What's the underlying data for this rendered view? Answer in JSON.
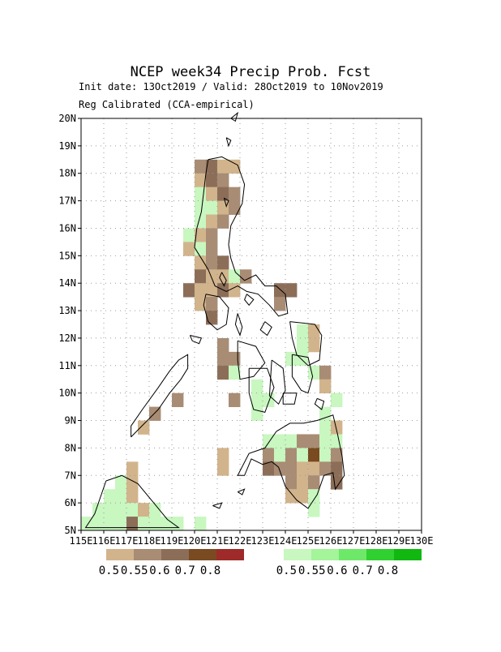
{
  "header": {
    "title": "NCEP week34 Precip Prob. Fcst",
    "init_line": "Init date: 13Oct2019 / Valid: 28Oct2019 to 10Nov2019",
    "method_line": "Reg Calibrated (CCA-empirical)"
  },
  "axes": {
    "lon_range": [
      115,
      130
    ],
    "lat_range": [
      5,
      20
    ],
    "lat_ticks": [
      "5N",
      "6N",
      "7N",
      "8N",
      "9N",
      "10N",
      "11N",
      "12N",
      "13N",
      "14N",
      "15N",
      "16N",
      "17N",
      "18N",
      "19N",
      "20N"
    ],
    "lon_ticks": [
      "115E",
      "116E",
      "117E",
      "118E",
      "119E",
      "120E",
      "121E",
      "122E",
      "123E",
      "124E",
      "125E",
      "126E",
      "127E",
      "128E",
      "129E",
      "130E"
    ]
  },
  "legend": {
    "below": {
      "labels": [
        "0.5",
        "0.55",
        "0.6",
        "0.7",
        "0.8"
      ],
      "colors": [
        "#d2b48c",
        "#a88c74",
        "#8c6e58",
        "#7a4a20",
        "#9e2a2a"
      ]
    },
    "above": {
      "labels": [
        "0.5",
        "0.55",
        "0.6",
        "0.7",
        "0.8"
      ],
      "colors": [
        "#c8f7c0",
        "#a4f49a",
        "#6ee868",
        "#30d030",
        "#10b810"
      ]
    }
  },
  "colors": {
    "frame": "#000000",
    "grid": "#9a9a9a",
    "coast": "#000000"
  },
  "cells": [
    {
      "lon": 120.25,
      "lat": 18.25,
      "c": 1
    },
    {
      "lon": 120.75,
      "lat": 18.25,
      "c": 2
    },
    {
      "lon": 121.25,
      "lat": 18.25,
      "c": 0
    },
    {
      "lon": 121.75,
      "lat": 18.25,
      "c": 0
    },
    {
      "lon": 120.25,
      "lat": 17.75,
      "c": 0
    },
    {
      "lon": 120.75,
      "lat": 17.75,
      "c": 2
    },
    {
      "lon": 121.25,
      "lat": 17.75,
      "c": 1
    },
    {
      "lon": 120.25,
      "lat": 17.25,
      "c": 5
    },
    {
      "lon": 120.75,
      "lat": 17.25,
      "c": 0
    },
    {
      "lon": 121.25,
      "lat": 17.25,
      "c": 2
    },
    {
      "lon": 121.75,
      "lat": 17.25,
      "c": 1
    },
    {
      "lon": 120.25,
      "lat": 16.75,
      "c": 5
    },
    {
      "lon": 120.75,
      "lat": 16.75,
      "c": 5
    },
    {
      "lon": 121.25,
      "lat": 16.75,
      "c": 0
    },
    {
      "lon": 121.75,
      "lat": 16.75,
      "c": 1
    },
    {
      "lon": 120.25,
      "lat": 16.25,
      "c": 5
    },
    {
      "lon": 120.75,
      "lat": 16.25,
      "c": 0
    },
    {
      "lon": 121.25,
      "lat": 16.25,
      "c": 1
    },
    {
      "lon": 119.75,
      "lat": 15.75,
      "c": 5
    },
    {
      "lon": 120.25,
      "lat": 15.75,
      "c": 0
    },
    {
      "lon": 120.75,
      "lat": 15.75,
      "c": 1
    },
    {
      "lon": 119.75,
      "lat": 15.25,
      "c": 0
    },
    {
      "lon": 120.25,
      "lat": 15.25,
      "c": 5
    },
    {
      "lon": 120.75,
      "lat": 15.25,
      "c": 1
    },
    {
      "lon": 120.25,
      "lat": 14.75,
      "c": 0
    },
    {
      "lon": 120.75,
      "lat": 14.75,
      "c": 1
    },
    {
      "lon": 121.25,
      "lat": 14.75,
      "c": 2
    },
    {
      "lon": 120.25,
      "lat": 14.25,
      "c": 2
    },
    {
      "lon": 120.75,
      "lat": 14.25,
      "c": 0
    },
    {
      "lon": 121.25,
      "lat": 14.25,
      "c": 0
    },
    {
      "lon": 121.75,
      "lat": 14.25,
      "c": 5
    },
    {
      "lon": 122.25,
      "lat": 14.25,
      "c": 1
    },
    {
      "lon": 119.75,
      "lat": 13.75,
      "c": 2
    },
    {
      "lon": 120.25,
      "lat": 13.75,
      "c": 0
    },
    {
      "lon": 120.75,
      "lat": 13.75,
      "c": 0
    },
    {
      "lon": 121.25,
      "lat": 13.75,
      "c": 2
    },
    {
      "lon": 121.75,
      "lat": 13.75,
      "c": 0
    },
    {
      "lon": 123.75,
      "lat": 13.75,
      "c": 2
    },
    {
      "lon": 124.25,
      "lat": 13.75,
      "c": 2
    },
    {
      "lon": 120.25,
      "lat": 13.25,
      "c": 0
    },
    {
      "lon": 120.75,
      "lat": 13.25,
      "c": 1
    },
    {
      "lon": 123.75,
      "lat": 13.25,
      "c": 1
    },
    {
      "lon": 120.75,
      "lat": 12.75,
      "c": 2
    },
    {
      "lon": 124.75,
      "lat": 12.25,
      "c": 5
    },
    {
      "lon": 125.25,
      "lat": 12.25,
      "c": 0
    },
    {
      "lon": 121.25,
      "lat": 11.75,
      "c": 1
    },
    {
      "lon": 125.25,
      "lat": 11.75,
      "c": 0
    },
    {
      "lon": 124.75,
      "lat": 11.75,
      "c": 5
    },
    {
      "lon": 121.25,
      "lat": 11.25,
      "c": 1
    },
    {
      "lon": 121.75,
      "lat": 11.25,
      "c": 1
    },
    {
      "lon": 124.25,
      "lat": 11.25,
      "c": 5
    },
    {
      "lon": 124.75,
      "lat": 11.25,
      "c": 5
    },
    {
      "lon": 121.25,
      "lat": 10.75,
      "c": 2
    },
    {
      "lon": 121.75,
      "lat": 10.75,
      "c": 5
    },
    {
      "lon": 125.25,
      "lat": 10.75,
      "c": 5
    },
    {
      "lon": 125.75,
      "lat": 10.75,
      "c": 1
    },
    {
      "lon": 122.75,
      "lat": 10.25,
      "c": 5
    },
    {
      "lon": 125.75,
      "lat": 10.25,
      "c": 0
    },
    {
      "lon": 121.75,
      "lat": 9.75,
      "c": 1
    },
    {
      "lon": 122.75,
      "lat": 9.75,
      "c": 5
    },
    {
      "lon": 123.25,
      "lat": 9.75,
      "c": 5
    },
    {
      "lon": 126.25,
      "lat": 9.75,
      "c": 5
    },
    {
      "lon": 119.25,
      "lat": 9.75,
      "c": 1
    },
    {
      "lon": 122.75,
      "lat": 9.25,
      "c": 5
    },
    {
      "lon": 125.75,
      "lat": 9.25,
      "c": 5
    },
    {
      "lon": 118.25,
      "lat": 9.25,
      "c": 1
    },
    {
      "lon": 117.75,
      "lat": 8.75,
      "c": 0
    },
    {
      "lon": 125.75,
      "lat": 8.75,
      "c": 5
    },
    {
      "lon": 126.25,
      "lat": 8.75,
      "c": 0
    },
    {
      "lon": 123.25,
      "lat": 8.25,
      "c": 5
    },
    {
      "lon": 123.75,
      "lat": 8.25,
      "c": 5
    },
    {
      "lon": 124.25,
      "lat": 8.25,
      "c": 5
    },
    {
      "lon": 124.75,
      "lat": 8.25,
      "c": 1
    },
    {
      "lon": 125.25,
      "lat": 8.25,
      "c": 1
    },
    {
      "lon": 125.75,
      "lat": 8.25,
      "c": 5
    },
    {
      "lon": 126.25,
      "lat": 8.25,
      "c": 5
    },
    {
      "lon": 121.25,
      "lat": 7.75,
      "c": 0
    },
    {
      "lon": 123.25,
      "lat": 7.75,
      "c": 1
    },
    {
      "lon": 123.75,
      "lat": 7.75,
      "c": 5
    },
    {
      "lon": 124.25,
      "lat": 7.75,
      "c": 1
    },
    {
      "lon": 124.75,
      "lat": 7.75,
      "c": 5
    },
    {
      "lon": 125.25,
      "lat": 7.75,
      "c": 3
    },
    {
      "lon": 125.75,
      "lat": 7.75,
      "c": 5
    },
    {
      "lon": 126.25,
      "lat": 7.75,
      "c": 1
    },
    {
      "lon": 121.25,
      "lat": 7.25,
      "c": 0
    },
    {
      "lon": 123.25,
      "lat": 7.25,
      "c": 2
    },
    {
      "lon": 123.75,
      "lat": 7.25,
      "c": 1
    },
    {
      "lon": 124.25,
      "lat": 7.25,
      "c": 1
    },
    {
      "lon": 124.75,
      "lat": 7.25,
      "c": 0
    },
    {
      "lon": 125.25,
      "lat": 7.25,
      "c": 0
    },
    {
      "lon": 125.75,
      "lat": 7.25,
      "c": 1
    },
    {
      "lon": 126.25,
      "lat": 7.25,
      "c": 2
    },
    {
      "lon": 124.25,
      "lat": 6.75,
      "c": 1
    },
    {
      "lon": 124.75,
      "lat": 6.75,
      "c": 0
    },
    {
      "lon": 125.25,
      "lat": 6.75,
      "c": 1
    },
    {
      "lon": 126.25,
      "lat": 6.75,
      "c": 2
    },
    {
      "lon": 124.25,
      "lat": 6.25,
      "c": 0
    },
    {
      "lon": 124.75,
      "lat": 6.25,
      "c": 0
    },
    {
      "lon": 125.25,
      "lat": 6.25,
      "c": 5
    },
    {
      "lon": 125.25,
      "lat": 5.75,
      "c": 5
    },
    {
      "lon": 117.25,
      "lat": 7.25,
      "c": 0
    },
    {
      "lon": 116.75,
      "lat": 6.75,
      "c": 5
    },
    {
      "lon": 117.25,
      "lat": 6.75,
      "c": 0
    },
    {
      "lon": 116.25,
      "lat": 6.25,
      "c": 5
    },
    {
      "lon": 116.75,
      "lat": 6.25,
      "c": 5
    },
    {
      "lon": 117.25,
      "lat": 6.25,
      "c": 0
    },
    {
      "lon": 115.75,
      "lat": 5.75,
      "c": 5
    },
    {
      "lon": 116.25,
      "lat": 5.75,
      "c": 5
    },
    {
      "lon": 116.75,
      "lat": 5.75,
      "c": 5
    },
    {
      "lon": 117.25,
      "lat": 5.75,
      "c": 5
    },
    {
      "lon": 117.75,
      "lat": 5.75,
      "c": 0
    },
    {
      "lon": 118.25,
      "lat": 5.75,
      "c": 5
    },
    {
      "lon": 115.25,
      "lat": 5.25,
      "c": 5
    },
    {
      "lon": 115.75,
      "lat": 5.25,
      "c": 5
    },
    {
      "lon": 116.25,
      "lat": 5.25,
      "c": 5
    },
    {
      "lon": 116.75,
      "lat": 5.25,
      "c": 5
    },
    {
      "lon": 117.25,
      "lat": 5.25,
      "c": 2
    },
    {
      "lon": 117.75,
      "lat": 5.25,
      "c": 5
    },
    {
      "lon": 118.25,
      "lat": 5.25,
      "c": 5
    },
    {
      "lon": 118.75,
      "lat": 5.25,
      "c": 5
    },
    {
      "lon": 119.25,
      "lat": 5.25,
      "c": 5
    },
    {
      "lon": 120.25,
      "lat": 5.25,
      "c": 5
    }
  ],
  "coastlines": [
    [
      [
        120.6,
        18.5
      ],
      [
        121.2,
        18.6
      ],
      [
        121.9,
        18.3
      ],
      [
        122.2,
        17.6
      ],
      [
        122.1,
        16.9
      ],
      [
        121.6,
        16.1
      ],
      [
        121.5,
        15.4
      ],
      [
        121.6,
        14.9
      ],
      [
        121.8,
        14.4
      ],
      [
        122.2,
        14.1
      ],
      [
        122.7,
        14.3
      ],
      [
        123.1,
        13.9
      ],
      [
        123.6,
        13.9
      ],
      [
        124.0,
        13.6
      ],
      [
        124.1,
        12.9
      ],
      [
        123.7,
        12.8
      ],
      [
        123.3,
        13.2
      ],
      [
        122.8,
        13.6
      ],
      [
        122.3,
        13.7
      ],
      [
        121.9,
        13.9
      ],
      [
        121.4,
        13.7
      ],
      [
        120.9,
        13.9
      ],
      [
        120.6,
        14.5
      ],
      [
        120.3,
        14.9
      ],
      [
        120.0,
        15.3
      ],
      [
        120.1,
        16.0
      ],
      [
        120.3,
        16.6
      ],
      [
        120.4,
        17.3
      ],
      [
        120.5,
        18.0
      ],
      [
        120.6,
        18.5
      ]
    ],
    [
      [
        121.3,
        17.1
      ],
      [
        121.5,
        17.0
      ],
      [
        121.4,
        16.8
      ],
      [
        121.3,
        17.1
      ]
    ],
    [
      [
        121.2,
        14.4
      ],
      [
        121.4,
        14.1
      ],
      [
        121.3,
        13.9
      ],
      [
        121.1,
        14.2
      ],
      [
        121.2,
        14.4
      ]
    ],
    [
      [
        120.5,
        13.6
      ],
      [
        121.1,
        13.5
      ],
      [
        121.5,
        13.1
      ],
      [
        121.4,
        12.5
      ],
      [
        121.0,
        12.3
      ],
      [
        120.6,
        12.6
      ],
      [
        120.4,
        13.2
      ],
      [
        120.5,
        13.6
      ]
    ],
    [
      [
        122.3,
        13.6
      ],
      [
        122.6,
        13.4
      ],
      [
        122.4,
        13.2
      ],
      [
        122.2,
        13.4
      ],
      [
        122.3,
        13.6
      ]
    ],
    [
      [
        123.1,
        12.6
      ],
      [
        123.4,
        12.4
      ],
      [
        123.2,
        12.1
      ],
      [
        122.9,
        12.3
      ],
      [
        123.1,
        12.6
      ]
    ],
    [
      [
        121.9,
        12.9
      ],
      [
        122.1,
        12.4
      ],
      [
        122.0,
        12.1
      ],
      [
        121.8,
        12.5
      ],
      [
        121.9,
        12.9
      ]
    ],
    [
      [
        124.2,
        12.6
      ],
      [
        125.3,
        12.5
      ],
      [
        125.6,
        12.1
      ],
      [
        125.5,
        11.2
      ],
      [
        125.0,
        11.0
      ],
      [
        124.5,
        11.4
      ],
      [
        124.3,
        12.0
      ],
      [
        124.2,
        12.6
      ]
    ],
    [
      [
        124.3,
        11.4
      ],
      [
        125.0,
        11.3
      ],
      [
        125.2,
        10.6
      ],
      [
        125.0,
        10.0
      ],
      [
        124.7,
        10.1
      ],
      [
        124.3,
        10.6
      ],
      [
        124.3,
        11.4
      ]
    ],
    [
      [
        121.9,
        11.9
      ],
      [
        122.7,
        11.7
      ],
      [
        123.1,
        11.1
      ],
      [
        122.6,
        10.6
      ],
      [
        122.0,
        10.5
      ],
      [
        121.9,
        11.2
      ],
      [
        121.9,
        11.9
      ]
    ],
    [
      [
        122.4,
        10.9
      ],
      [
        123.2,
        10.9
      ],
      [
        123.5,
        10.2
      ],
      [
        123.1,
        9.3
      ],
      [
        122.6,
        9.4
      ],
      [
        122.4,
        10.0
      ],
      [
        122.4,
        10.9
      ]
    ],
    [
      [
        123.4,
        11.2
      ],
      [
        123.9,
        10.9
      ],
      [
        124.0,
        10.1
      ],
      [
        123.7,
        9.6
      ],
      [
        123.3,
        9.9
      ],
      [
        123.4,
        11.2
      ]
    ],
    [
      [
        123.9,
        10.0
      ],
      [
        124.5,
        10.0
      ],
      [
        124.4,
        9.6
      ],
      [
        123.9,
        9.6
      ],
      [
        123.9,
        10.0
      ]
    ],
    [
      [
        125.4,
        9.8
      ],
      [
        125.7,
        9.7
      ],
      [
        125.6,
        9.4
      ],
      [
        125.3,
        9.6
      ],
      [
        125.4,
        9.8
      ]
    ],
    [
      [
        123.6,
        8.6
      ],
      [
        124.2,
        8.9
      ],
      [
        124.8,
        8.9
      ],
      [
        125.4,
        9.0
      ],
      [
        126.1,
        9.2
      ],
      [
        126.3,
        8.5
      ],
      [
        126.5,
        7.7
      ],
      [
        126.6,
        7.0
      ],
      [
        126.2,
        6.5
      ],
      [
        126.1,
        7.1
      ],
      [
        125.7,
        7.0
      ],
      [
        125.4,
        6.3
      ],
      [
        125.0,
        5.8
      ],
      [
        124.5,
        6.1
      ],
      [
        124.0,
        6.6
      ],
      [
        123.7,
        7.3
      ],
      [
        123.4,
        7.5
      ],
      [
        123.0,
        7.4
      ],
      [
        122.5,
        7.6
      ],
      [
        122.2,
        7.0
      ],
      [
        121.9,
        7.0
      ],
      [
        122.4,
        7.8
      ],
      [
        123.1,
        8.0
      ],
      [
        123.6,
        8.6
      ]
    ],
    [
      [
        117.2,
        8.4
      ],
      [
        117.8,
        8.9
      ],
      [
        118.4,
        9.4
      ],
      [
        118.9,
        10.0
      ],
      [
        119.4,
        10.5
      ],
      [
        119.7,
        10.9
      ],
      [
        119.7,
        11.4
      ],
      [
        119.3,
        11.2
      ],
      [
        118.9,
        10.8
      ],
      [
        118.4,
        10.2
      ],
      [
        117.7,
        9.4
      ],
      [
        117.2,
        8.8
      ],
      [
        117.2,
        8.4
      ]
    ],
    [
      [
        119.8,
        12.1
      ],
      [
        120.3,
        12.0
      ],
      [
        120.2,
        11.8
      ],
      [
        119.9,
        11.9
      ],
      [
        119.8,
        12.1
      ]
    ],
    [
      [
        116.1,
        6.8
      ],
      [
        116.8,
        7.0
      ],
      [
        117.5,
        6.7
      ],
      [
        118.2,
        6.0
      ],
      [
        118.8,
        5.4
      ],
      [
        119.3,
        5.1
      ],
      [
        115.2,
        5.1
      ],
      [
        115.6,
        5.6
      ],
      [
        116.1,
        6.8
      ]
    ],
    [
      [
        120.8,
        5.9
      ],
      [
        121.2,
        6.0
      ],
      [
        121.1,
        5.8
      ],
      [
        120.8,
        5.9
      ]
    ],
    [
      [
        121.9,
        6.4
      ],
      [
        122.2,
        6.5
      ],
      [
        122.1,
        6.3
      ],
      [
        121.9,
        6.4
      ]
    ],
    [
      [
        121.6,
        20.0
      ],
      [
        121.9,
        20.2
      ],
      [
        121.8,
        19.9
      ],
      [
        121.6,
        20.0
      ]
    ],
    [
      [
        121.4,
        19.3
      ],
      [
        121.6,
        19.2
      ],
      [
        121.5,
        19.0
      ],
      [
        121.4,
        19.3
      ]
    ]
  ]
}
